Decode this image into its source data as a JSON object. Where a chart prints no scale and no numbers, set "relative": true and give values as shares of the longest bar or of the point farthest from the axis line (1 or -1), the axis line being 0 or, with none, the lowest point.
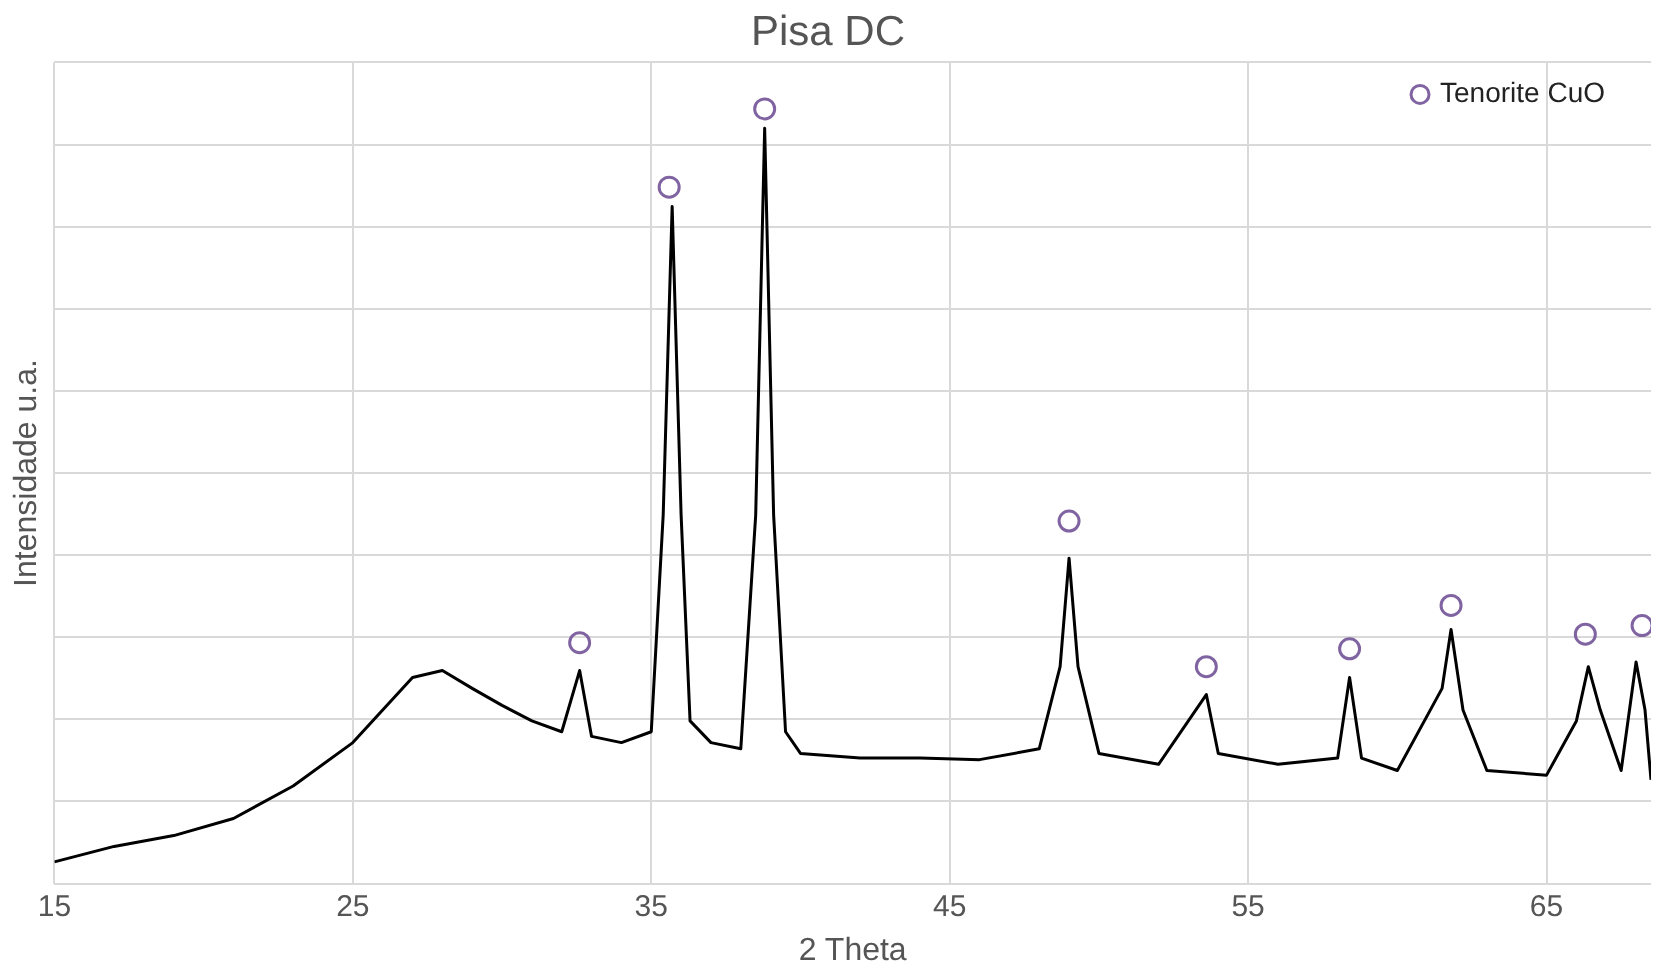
{
  "chart_data": {
    "type": "line",
    "title": "Pisa DC",
    "xlabel": "2 Theta",
    "ylabel": "Intensidade u.a.",
    "relative": true,
    "xlim": [
      15,
      68.5
    ],
    "xticks": [
      15,
      25,
      35,
      45,
      55,
      65
    ],
    "grid": true,
    "legend": "top right",
    "series": [
      {
        "color": "#000000",
        "marker": "none",
        "x": [
          15,
          17,
          19,
          21,
          23,
          25,
          26,
          27,
          28,
          29,
          30,
          31,
          32,
          32.6,
          33,
          34,
          35,
          35.4,
          35.7,
          36.0,
          36.3,
          37,
          38,
          38.5,
          38.8,
          39.1,
          39.5,
          40,
          42,
          44,
          46,
          48,
          48.7,
          49.0,
          49.3,
          50,
          52,
          53.6,
          54,
          56,
          58,
          58.4,
          58.8,
          60,
          61.5,
          61.8,
          62.2,
          63,
          65,
          66,
          66.4,
          66.8,
          67.5,
          68.0,
          68.3,
          68.5
        ],
        "values": [
          0.028,
          0.048,
          0.062,
          0.084,
          0.126,
          0.182,
          0.224,
          0.266,
          0.275,
          0.252,
          0.23,
          0.21,
          0.196,
          0.275,
          0.19,
          0.182,
          0.196,
          0.476,
          0.874,
          0.476,
          0.21,
          0.182,
          0.174,
          0.476,
          0.975,
          0.476,
          0.196,
          0.168,
          0.162,
          0.162,
          0.16,
          0.174,
          0.28,
          0.42,
          0.28,
          0.168,
          0.154,
          0.244,
          0.168,
          0.154,
          0.162,
          0.266,
          0.162,
          0.146,
          0.252,
          0.328,
          0.224,
          0.146,
          0.14,
          0.21,
          0.28,
          0.224,
          0.146,
          0.286,
          0.224,
          0.134
        ]
      },
      {
        "type": "scatter",
        "name": "Tenorite CuO",
        "color": "#8064a2",
        "marker": "circle",
        "x": [
          32.6,
          35.6,
          38.8,
          49.0,
          53.6,
          58.4,
          61.8,
          66.3,
          68.2
        ],
        "values": [
          0.311,
          0.899,
          1,
          0.468,
          0.28,
          0.303,
          0.359,
          0.322,
          0.333
        ]
      }
    ]
  }
}
